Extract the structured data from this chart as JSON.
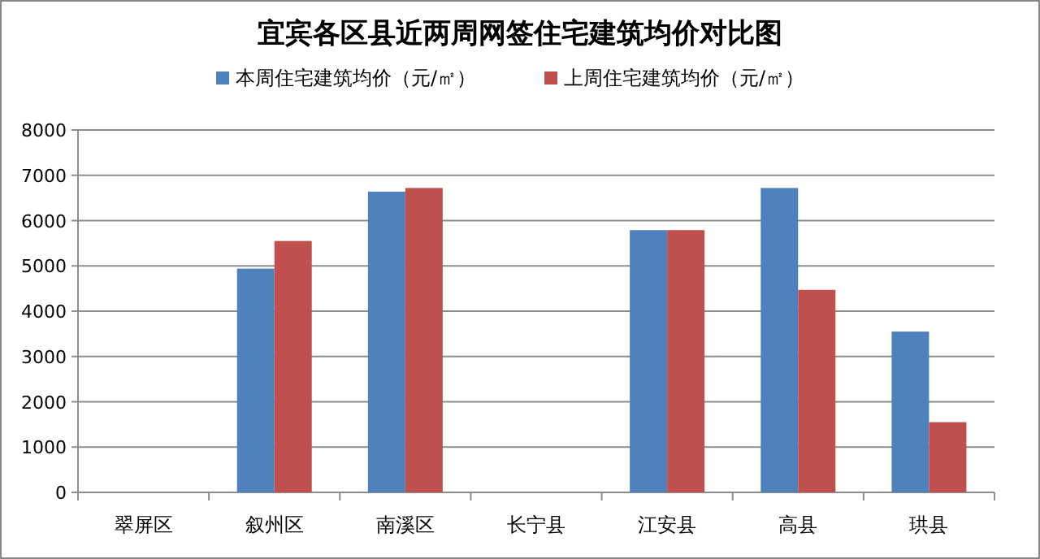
{
  "chart_data": {
    "type": "bar",
    "title": "宜宾各区县近两周网签住宅建筑均价对比图",
    "categories": [
      "翠屏区",
      "叙州区",
      "南溪区",
      "长宁县",
      "江安县",
      "高县",
      "珙县"
    ],
    "series": [
      {
        "name": "本周住宅建筑均价（元/㎡）",
        "color": "#4f81bd",
        "values": [
          null,
          4940,
          6640,
          null,
          5790,
          6720,
          3550
        ]
      },
      {
        "name": "上周住宅建筑均价（元/㎡）",
        "color": "#c0504d",
        "values": [
          null,
          5550,
          6720,
          null,
          5790,
          4470,
          1550
        ]
      }
    ],
    "ylim": [
      0,
      8000
    ],
    "yticks": [
      0,
      1000,
      2000,
      3000,
      4000,
      5000,
      6000,
      7000,
      8000
    ],
    "grid": "y",
    "legend": "top"
  }
}
